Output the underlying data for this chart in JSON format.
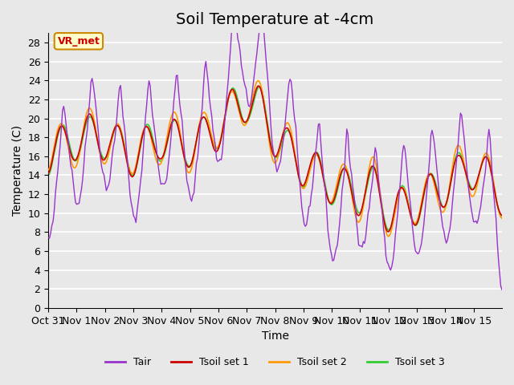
{
  "title": "Soil Temperature at -4cm",
  "xlabel": "Time",
  "ylabel": "Temperature (C)",
  "ylim": [
    0,
    29
  ],
  "yticks": [
    0,
    2,
    4,
    6,
    8,
    10,
    12,
    14,
    16,
    18,
    20,
    22,
    24,
    26,
    28
  ],
  "xtick_labels": [
    "Oct 31",
    "Nov 1",
    "Nov 2",
    "Nov 3",
    "Nov 4",
    "Nov 5",
    "Nov 6",
    "Nov 7",
    "Nov 8",
    "Nov 9",
    "Nov 10",
    "Nov 11",
    "Nov 12",
    "Nov 13",
    "Nov 14",
    "Nov 15"
  ],
  "annotation_text": "VR_met",
  "annotation_bg": "#ffffcc",
  "annotation_border": "#cc8800",
  "annotation_text_color": "#cc0000",
  "colors": {
    "Tair": "#9933cc",
    "Tsoil1": "#cc0000",
    "Tsoil2": "#ff9900",
    "Tsoil3": "#33cc33"
  },
  "legend_labels": [
    "Tair",
    "Tsoil set 1",
    "Tsoil set 2",
    "Tsoil set 3"
  ],
  "bg_color": "#e8e8e8",
  "plot_bg_color": "#e8e8e8",
  "grid_color": "#ffffff",
  "title_fontsize": 14,
  "axis_fontsize": 10,
  "tick_fontsize": 9
}
